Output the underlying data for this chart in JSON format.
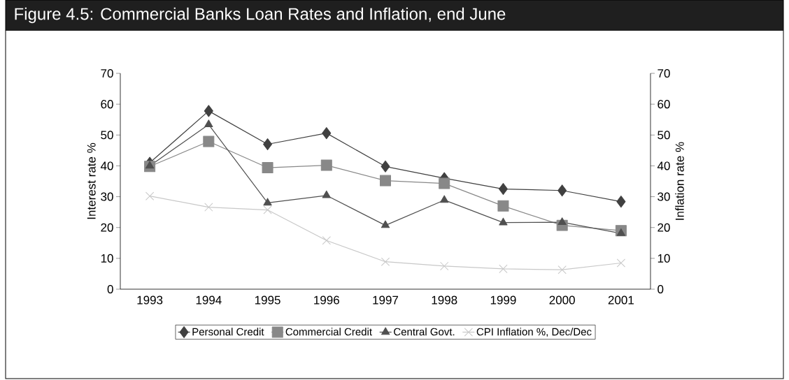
{
  "chart_data": {
    "type": "line",
    "title": "Figure 4.5:  Commercial Banks Loan Rates and Inflation, end June",
    "categories": [
      "1993",
      "1994",
      "1995",
      "1996",
      "1997",
      "1998",
      "1999",
      "2000",
      "2001"
    ],
    "series": [
      {
        "name": "Personal Credit",
        "color": "#404040",
        "marker": "diamond",
        "values": [
          41,
          57.8,
          47,
          50.6,
          39.8,
          36,
          32.5,
          32,
          28.4
        ]
      },
      {
        "name": "Commercial Credit",
        "color": "#888888",
        "marker": "square",
        "values": [
          39.8,
          47.9,
          39.4,
          40.2,
          35.2,
          34.3,
          27,
          20.7,
          19
        ]
      },
      {
        "name": "Central Govt.",
        "color": "#505050",
        "marker": "triangle",
        "values": [
          40,
          53.4,
          28,
          30.4,
          20.7,
          28.9,
          21.6,
          21.7,
          18.1
        ]
      },
      {
        "name": "CPI Inflation %, Dec/Dec",
        "color": "#c8c8c8",
        "marker": "cross",
        "axis": "y2",
        "values": [
          30.2,
          26.6,
          25.7,
          15.8,
          8.9,
          7.5,
          6.6,
          6.3,
          8.5
        ]
      }
    ],
    "ylabel": "Interest rate %",
    "y2label": "Inflation rate %",
    "ylim": [
      0,
      70
    ],
    "yticks": [
      0,
      10,
      20,
      30,
      40,
      50,
      60,
      70
    ],
    "y2lim": [
      0,
      70
    ],
    "y2ticks": [
      0,
      10,
      20,
      30,
      40,
      50,
      60,
      70
    ],
    "legend": "bottom",
    "grid": false,
    "line_style": "solid"
  }
}
